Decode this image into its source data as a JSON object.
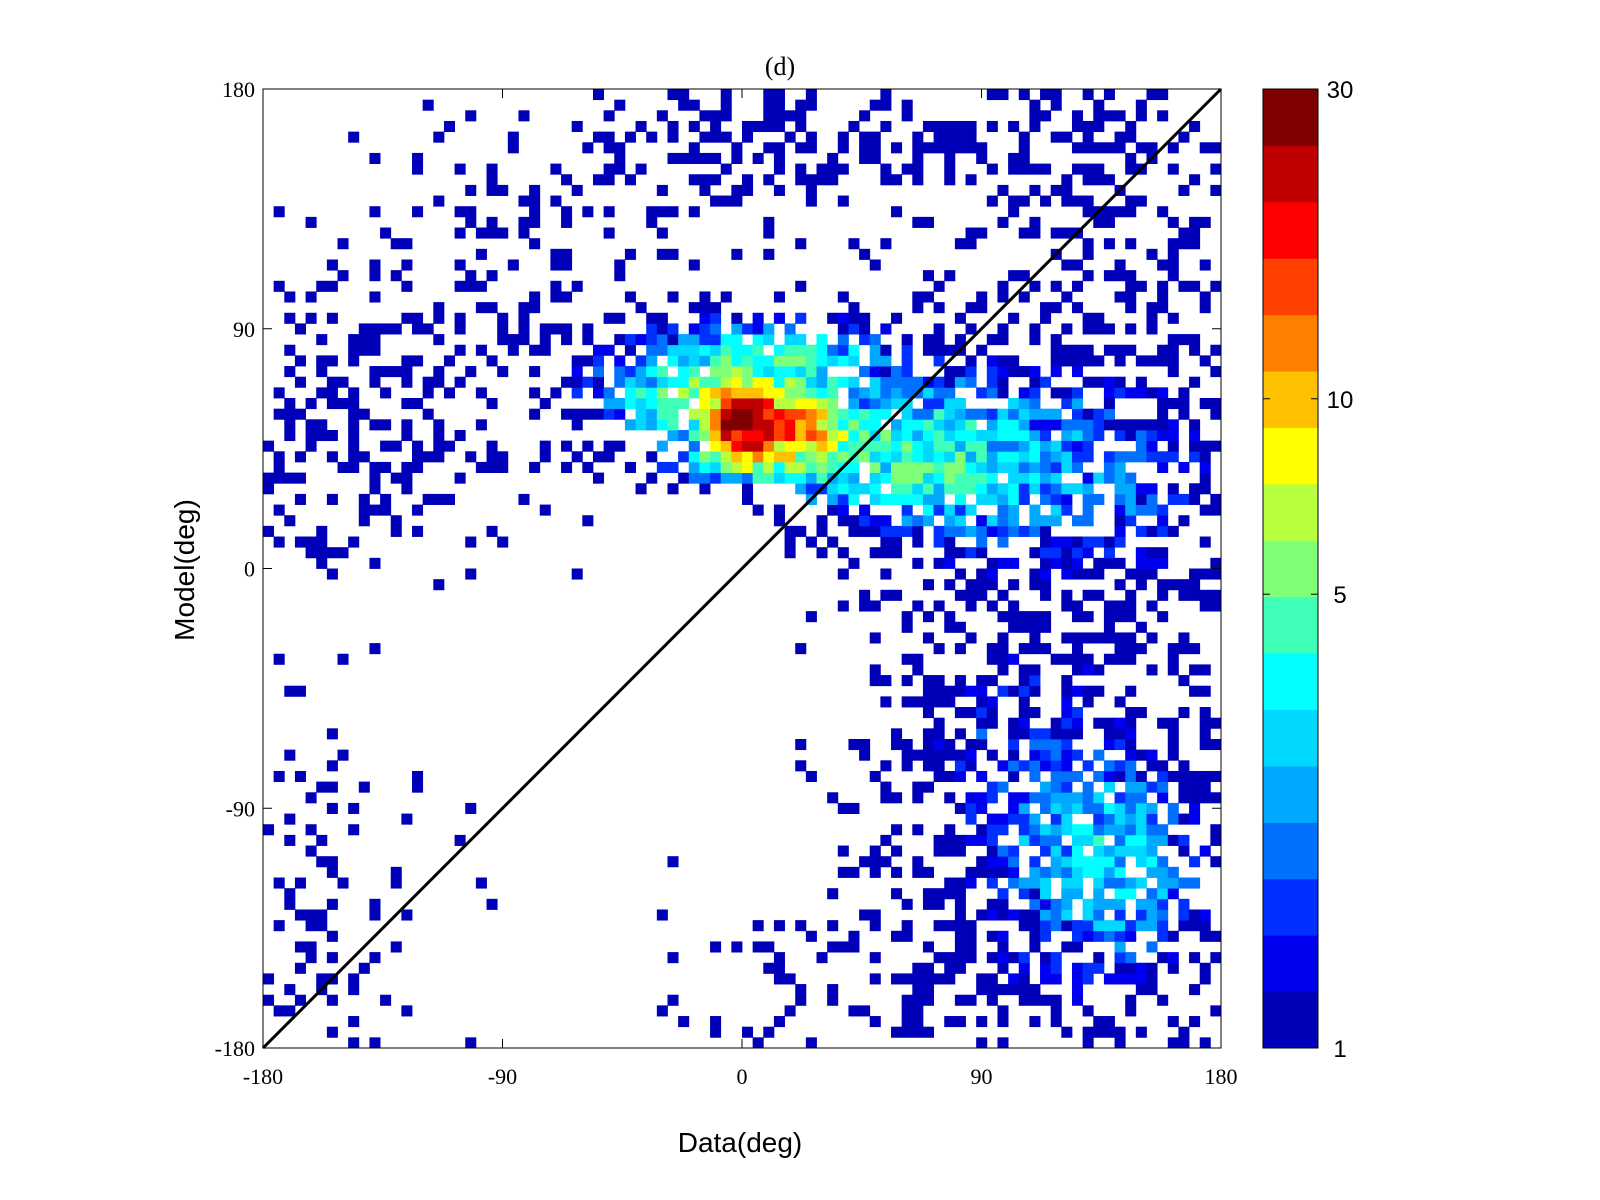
{
  "chart_data": {
    "type": "heatmap",
    "title": "(d)",
    "xlabel": "Data(deg)",
    "ylabel": "Model(deg)",
    "xlim": [
      -180,
      180
    ],
    "ylim": [
      -180,
      180
    ],
    "bin_size_deg": 4,
    "x_ticks": [
      -180,
      -90,
      0,
      90,
      180
    ],
    "y_ticks": [
      -180,
      -90,
      0,
      90,
      180
    ],
    "x_tick_labels": [
      "-180",
      "-90",
      "0",
      "90",
      "180"
    ],
    "y_tick_labels": [
      "-180",
      "-90",
      "0",
      "90",
      "180"
    ],
    "reference_line": {
      "from": [
        -180,
        -180
      ],
      "to": [
        180,
        180
      ],
      "color": "#000000"
    },
    "grid": false,
    "colorbar": {
      "placement": "right",
      "scale": "log",
      "min": 1,
      "max": 30,
      "ticks": [
        1,
        5,
        10,
        30
      ],
      "tick_labels": [
        "1",
        "5",
        "10",
        "30"
      ],
      "colors": [
        "#0000b8",
        "#0000f0",
        "#0030ff",
        "#0070ff",
        "#00a8ff",
        "#00d8ff",
        "#00ffff",
        "#40ffb8",
        "#80ff78",
        "#b8ff40",
        "#ffff00",
        "#ffc000",
        "#ff8000",
        "#ff4000",
        "#ff0000",
        "#c00000",
        "#800000"
      ]
    },
    "clusters": [
      {
        "cx": 2,
        "cy": 54,
        "sx": 7,
        "sy": 6,
        "peak": 28
      },
      {
        "cx": 22,
        "cy": 52,
        "sx": 10,
        "sy": 7,
        "peak": 9
      },
      {
        "cx": 0,
        "cy": 62,
        "sx": 18,
        "sy": 8,
        "peak": 6
      },
      {
        "cx": 0,
        "cy": 40,
        "sx": 16,
        "sy": 5,
        "peak": 4.5
      },
      {
        "cx": 18,
        "cy": 80,
        "sx": 25,
        "sy": 10,
        "peak": 3.5
      },
      {
        "cx": -30,
        "cy": 65,
        "sx": 22,
        "sy": 15,
        "peak": 2.5
      },
      {
        "cx": 45,
        "cy": 42,
        "sx": 25,
        "sy": 15,
        "peak": 3.5
      },
      {
        "cx": 85,
        "cy": 40,
        "sx": 25,
        "sy": 25,
        "peak": 2.5
      },
      {
        "cx": 140,
        "cy": 40,
        "sx": 30,
        "sy": 25,
        "peak": 1.6
      },
      {
        "cx": 140,
        "cy": -110,
        "sx": 25,
        "sy": 25,
        "peak": 2.8
      },
      {
        "cx": 95,
        "cy": -70,
        "sx": 30,
        "sy": 40,
        "peak": 1.3
      },
      {
        "cx": 20,
        "cy": 160,
        "sx": 60,
        "sy": 20,
        "peak": 0.8
      },
      {
        "cx": -150,
        "cy": 50,
        "sx": 40,
        "sy": 30,
        "peak": 0.8
      },
      {
        "cx": 100,
        "cy": -160,
        "sx": 60,
        "sy": 20,
        "peak": 0.7
      },
      {
        "cx": 150,
        "cy": -20,
        "sx": 25,
        "sy": 40,
        "peak": 0.6
      },
      {
        "cx": -160,
        "cy": -130,
        "sx": 30,
        "sy": 40,
        "peak": 0.4
      },
      {
        "cx": 140,
        "cy": 130,
        "sx": 40,
        "sy": 40,
        "peak": 0.7
      },
      {
        "cx": -70,
        "cy": 110,
        "sx": 40,
        "sy": 30,
        "peak": 0.5
      }
    ],
    "random_seed": 7
  }
}
